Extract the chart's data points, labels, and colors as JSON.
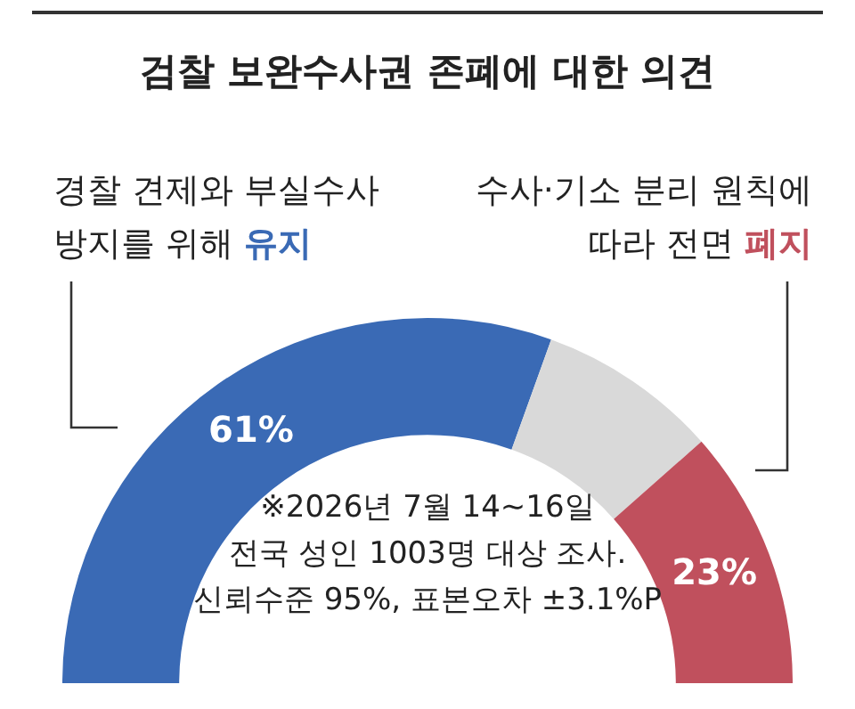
{
  "chart_data": {
    "type": "donut",
    "title": "검찰 보완수사권 존폐에 대한 의견",
    "categories": [
      "경찰 견제와 부실수사\n방지를 위해 유지",
      null,
      "수사·기소 분리 원칙에\n따라 전면 폐지"
    ],
    "values": [
      61,
      16,
      23
    ],
    "colors": [
      "#3a6ab5",
      "#d9d9d9",
      "#c0505d"
    ],
    "value_labels": [
      "61%",
      null,
      "23%"
    ],
    "annotations": [
      "※2026년 7월 14~16일",
      "전국 성인 1003명 대상 조사.",
      "신뢰수준 95%, 표본오차 ±3.1%P"
    ],
    "legend": false
  }
}
